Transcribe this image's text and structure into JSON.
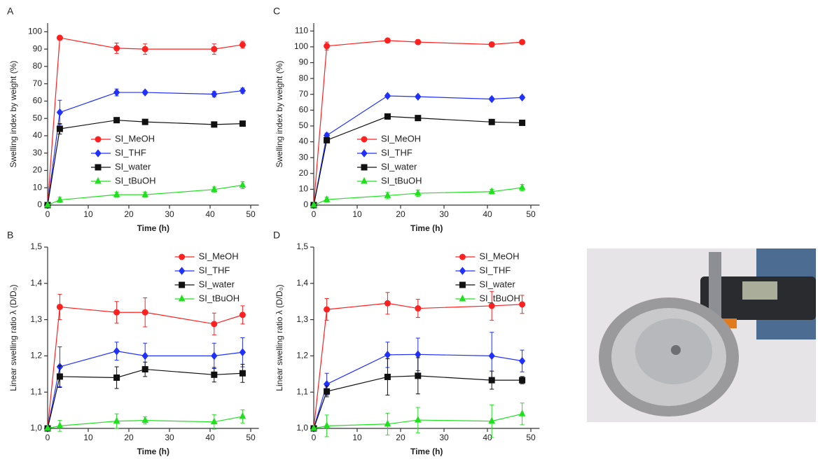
{
  "chart_data": [
    {
      "type": "line",
      "panel": "A",
      "xlabel": "Time (h)",
      "ylabel": "Swelling index by weight (%)",
      "legend": "center left",
      "x": [
        0,
        3,
        17,
        24,
        41,
        48
      ],
      "xlim": [
        0,
        52
      ],
      "xticks": [
        0,
        10,
        20,
        30,
        40,
        50
      ],
      "ylim": [
        0,
        105
      ],
      "yticks": [
        0,
        10,
        20,
        30,
        40,
        50,
        60,
        70,
        80,
        90,
        100
      ],
      "series": [
        {
          "name": "SI_MeOH",
          "color": "#ff2020",
          "marker": "circle",
          "values": [
            0,
            96.5,
            90.5,
            90,
            90,
            92.5
          ],
          "errors": [
            0,
            1,
            3,
            3,
            3,
            2
          ]
        },
        {
          "name": "SI_THF",
          "color": "#2030ff",
          "marker": "diamond",
          "values": [
            0,
            53.5,
            65,
            65,
            64,
            66
          ],
          "errors": [
            0,
            7,
            2,
            1,
            1.5,
            1.5
          ]
        },
        {
          "name": "SI_water",
          "color": "#111111",
          "marker": "square",
          "values": [
            0,
            44,
            49,
            48,
            46.5,
            47
          ],
          "errors": [
            0,
            3,
            1,
            0.5,
            0.5,
            0.5
          ]
        },
        {
          "name": "SI_tBuOH",
          "color": "#20e020",
          "marker": "triangle",
          "values": [
            0,
            3,
            6,
            6,
            9,
            11.5
          ],
          "errors": [
            0,
            1.5,
            1.5,
            1.5,
            1.5,
            2
          ]
        }
      ]
    },
    {
      "type": "line",
      "panel": "C",
      "xlabel": "Time (h)",
      "ylabel": "Swelling index by weight (%)",
      "legend": "center left",
      "x": [
        0,
        3,
        17,
        24,
        41,
        48
      ],
      "xlim": [
        0,
        52
      ],
      "xticks": [
        0,
        10,
        20,
        30,
        40,
        50
      ],
      "ylim": [
        0,
        115
      ],
      "yticks": [
        0,
        10,
        20,
        30,
        40,
        50,
        60,
        70,
        80,
        90,
        100,
        110
      ],
      "series": [
        {
          "name": "SI_MeOH",
          "color": "#ff2020",
          "marker": "circle",
          "values": [
            0,
            100.5,
            104,
            103,
            101.5,
            103
          ],
          "errors": [
            0,
            2.5,
            1,
            1.5,
            1.5,
            1
          ]
        },
        {
          "name": "SI_THF",
          "color": "#2030ff",
          "marker": "diamond",
          "values": [
            0,
            44,
            69,
            68.5,
            67,
            68
          ],
          "errors": [
            0,
            1.5,
            1,
            1,
            1,
            1
          ]
        },
        {
          "name": "SI_water",
          "color": "#111111",
          "marker": "square",
          "values": [
            0,
            41,
            56,
            55,
            52.5,
            52
          ],
          "errors": [
            0,
            1,
            1,
            1,
            0.5,
            0.5
          ]
        },
        {
          "name": "SI_tBuOH",
          "color": "#20e020",
          "marker": "triangle",
          "values": [
            0,
            3.5,
            6,
            7.5,
            8.5,
            11
          ],
          "errors": [
            0,
            1.5,
            2,
            2,
            1.5,
            2
          ]
        }
      ]
    },
    {
      "type": "line",
      "panel": "B",
      "xlabel": "Time (h)",
      "ylabel": "Linear swelling ratio λ (D/D₀)",
      "legend": "upper right",
      "x": [
        0,
        3,
        17,
        24,
        41,
        48
      ],
      "xlim": [
        0,
        52
      ],
      "xticks": [
        0,
        10,
        20,
        30,
        40,
        50
      ],
      "ylim": [
        1.0,
        1.5
      ],
      "yticks": [
        {
          "value": 1.0,
          "label": "1,0"
        },
        {
          "value": 1.1,
          "label": "1,1"
        },
        {
          "value": 1.2,
          "label": "1,2"
        },
        {
          "value": 1.3,
          "label": "1,3"
        },
        {
          "value": 1.4,
          "label": "1,4"
        },
        {
          "value": 1.5,
          "label": "1,5"
        }
      ],
      "series": [
        {
          "name": "SI_MeOH",
          "color": "#ff2020",
          "marker": "circle",
          "values": [
            1.0,
            1.335,
            1.32,
            1.32,
            1.288,
            1.313
          ],
          "errors": [
            0,
            0.035,
            0.03,
            0.04,
            0.03,
            0.025
          ]
        },
        {
          "name": "SI_THF",
          "color": "#2030ff",
          "marker": "diamond",
          "values": [
            1.0,
            1.17,
            1.213,
            1.2,
            1.2,
            1.21
          ],
          "errors": [
            0,
            0.055,
            0.025,
            0.035,
            0.035,
            0.04
          ]
        },
        {
          "name": "SI_water",
          "color": "#111111",
          "marker": "square",
          "values": [
            1.0,
            1.143,
            1.14,
            1.163,
            1.148,
            1.152
          ],
          "errors": [
            0,
            0.03,
            0.03,
            0.02,
            0.02,
            0.025
          ]
        },
        {
          "name": "SI_tBuOH",
          "color": "#20e020",
          "marker": "triangle",
          "values": [
            1.0,
            1.007,
            1.02,
            1.022,
            1.018,
            1.033
          ],
          "errors": [
            0,
            0.015,
            0.02,
            0.01,
            0.02,
            0.018
          ]
        }
      ]
    },
    {
      "type": "line",
      "panel": "D",
      "xlabel": "Time (h)",
      "ylabel": "Linear swelling ratio λ (D/D₀)",
      "legend": "upper right",
      "x": [
        0,
        3,
        17,
        24,
        41,
        48
      ],
      "xlim": [
        0,
        52
      ],
      "xticks": [
        0,
        10,
        20,
        30,
        40,
        50
      ],
      "ylim": [
        1.0,
        1.5
      ],
      "yticks": [
        {
          "value": 1.0,
          "label": "1,0"
        },
        {
          "value": 1.1,
          "label": "1,1"
        },
        {
          "value": 1.2,
          "label": "1,2"
        },
        {
          "value": 1.3,
          "label": "1,3"
        },
        {
          "value": 1.4,
          "label": "1,4"
        },
        {
          "value": 1.5,
          "label": "1,5"
        }
      ],
      "series": [
        {
          "name": "SI_MeOH",
          "color": "#ff2020",
          "marker": "circle",
          "values": [
            1.0,
            1.328,
            1.345,
            1.331,
            1.338,
            1.342
          ],
          "errors": [
            0,
            0.03,
            0.03,
            0.025,
            0.04,
            0.025
          ]
        },
        {
          "name": "SI_THF",
          "color": "#2030ff",
          "marker": "diamond",
          "values": [
            1.0,
            1.122,
            1.203,
            1.204,
            1.2,
            1.186
          ],
          "errors": [
            0,
            0.03,
            0.035,
            0.045,
            0.065,
            0.03
          ]
        },
        {
          "name": "SI_water",
          "color": "#111111",
          "marker": "square",
          "values": [
            1.0,
            1.102,
            1.142,
            1.145,
            1.133,
            1.133
          ],
          "errors": [
            0,
            0.015,
            0.05,
            0.05,
            0.025,
            0.01
          ]
        },
        {
          "name": "SI_tBuOH",
          "color": "#20e020",
          "marker": "triangle",
          "values": [
            1.0,
            1.007,
            1.012,
            1.023,
            1.02,
            1.04
          ],
          "errors": [
            0,
            0.03,
            0.03,
            0.035,
            0.045,
            0.03
          ]
        }
      ]
    }
  ]
}
